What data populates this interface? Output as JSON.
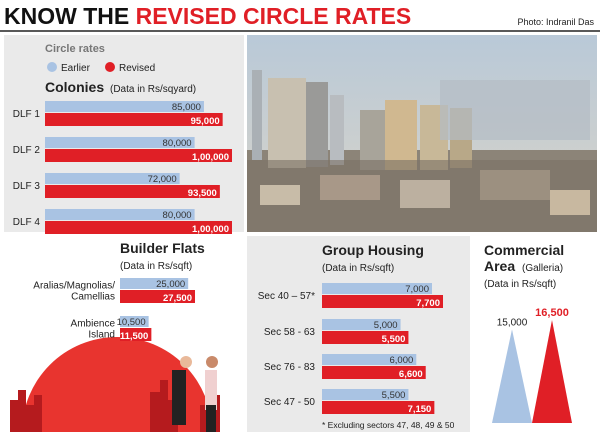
{
  "header": {
    "title": [
      "KNOW THE",
      "REVISED CIRCLE RATES"
    ],
    "credit": "Photo: Indranil Das"
  },
  "chart_data": [
    {
      "type": "bar",
      "orientation": "horizontal",
      "title": "Colonies",
      "subtitle": "(Data in Rs/sqyard)",
      "legend_title": "Circle rates",
      "categories": [
        "DLF 1",
        "DLF 2",
        "DLF 3",
        "DLF 4"
      ],
      "series": [
        {
          "name": "Earlier",
          "color": "#a9c3e3",
          "values": [
            85000,
            80000,
            72000,
            80000
          ],
          "value_labels": [
            "85,000",
            "80,000",
            "72,000",
            "80,000"
          ]
        },
        {
          "name": "Revised",
          "color": "#e01f26",
          "values": [
            95000,
            100000,
            93500,
            100000
          ],
          "value_labels": [
            "95,000",
            "1,00,000",
            "93,500",
            "1,00,000"
          ]
        }
      ]
    },
    {
      "type": "bar",
      "orientation": "horizontal",
      "title": "Builder Flats",
      "subtitle": "(Data in Rs/sqft)",
      "categories": [
        "Aralias/Magnolias/\nCamellias",
        "Ambience\nIsland"
      ],
      "series": [
        {
          "name": "Earlier",
          "color": "#a9c3e3",
          "values": [
            25000,
            10500
          ],
          "value_labels": [
            "25,000",
            "10,500"
          ]
        },
        {
          "name": "Revised",
          "color": "#e01f26",
          "values": [
            27500,
            11500
          ],
          "value_labels": [
            "27,500",
            "11,500"
          ]
        }
      ]
    },
    {
      "type": "bar",
      "orientation": "horizontal",
      "title": "Group Housing",
      "subtitle": "(Data in Rs/sqft)",
      "note": "* Excluding sectors 47, 48, 49 & 50",
      "categories": [
        "Sec 40 – 57*",
        "Sec 58 - 63",
        "Sec 76 - 83",
        "Sec 47 - 50"
      ],
      "series": [
        {
          "name": "Earlier",
          "color": "#a9c3e3",
          "values": [
            7000,
            5000,
            6000,
            5500
          ],
          "value_labels": [
            "7,000",
            "5,000",
            "6,000",
            "5,500"
          ]
        },
        {
          "name": "Revised",
          "color": "#e01f26",
          "values": [
            7700,
            5500,
            6600,
            7150
          ],
          "value_labels": [
            "7,700",
            "5,500",
            "6,600",
            "7,150"
          ]
        }
      ]
    },
    {
      "type": "triangle",
      "title": "Commercial\nArea",
      "title_note": "(Galleria)",
      "subtitle": "(Data in Rs/sqft)",
      "series": [
        {
          "name": "Earlier",
          "color": "#a9c3e3",
          "values": [
            15000
          ],
          "value_labels": [
            "15,000"
          ]
        },
        {
          "name": "Revised",
          "color": "#e01f26",
          "values": [
            16500
          ],
          "value_labels": [
            "16,500"
          ]
        }
      ]
    }
  ]
}
